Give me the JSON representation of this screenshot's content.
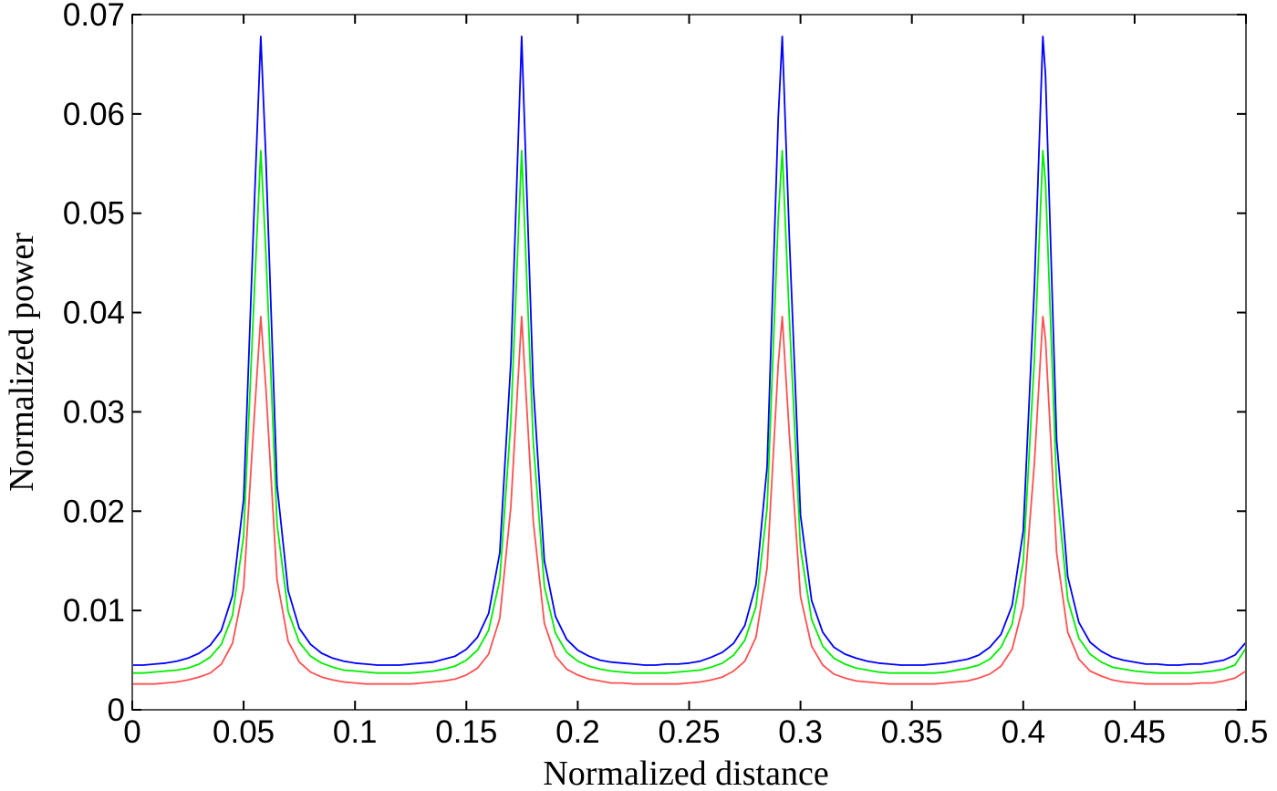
{
  "chart_data": {
    "type": "line",
    "title": "",
    "xlabel": "Normalized distance",
    "ylabel": "Normalized power",
    "xlim": [
      0,
      0.5
    ],
    "ylim": [
      0,
      0.07
    ],
    "grid": false,
    "legend": null,
    "xticks": [
      0,
      0.05,
      0.1,
      0.15,
      0.2,
      0.25,
      0.3,
      0.35,
      0.4,
      0.45,
      0.5
    ],
    "xtick_labels": [
      "0",
      "0.05",
      "0.1",
      "0.15",
      "0.2",
      "0.25",
      "0.3",
      "0.35",
      "0.4",
      "0.45",
      "0.5"
    ],
    "yticks": [
      0,
      0.01,
      0.02,
      0.03,
      0.04,
      0.05,
      0.06,
      0.07
    ],
    "ytick_labels": [
      "0",
      "0.01",
      "0.02",
      "0.03",
      "0.04",
      "0.05",
      "0.06",
      "0.07"
    ],
    "x": [
      0,
      0.005,
      0.01,
      0.015,
      0.02,
      0.025,
      0.03,
      0.035,
      0.04,
      0.045,
      0.05,
      0.055,
      0.0577,
      0.06,
      0.065,
      0.07,
      0.075,
      0.08,
      0.085,
      0.09,
      0.095,
      0.1,
      0.105,
      0.11,
      0.115,
      0.12,
      0.125,
      0.13,
      0.135,
      0.14,
      0.145,
      0.15,
      0.155,
      0.16,
      0.165,
      0.17,
      0.1748,
      0.18,
      0.185,
      0.19,
      0.195,
      0.2,
      0.205,
      0.21,
      0.215,
      0.22,
      0.225,
      0.23,
      0.235,
      0.24,
      0.245,
      0.25,
      0.255,
      0.26,
      0.265,
      0.27,
      0.275,
      0.28,
      0.285,
      0.29,
      0.2918,
      0.295,
      0.3,
      0.305,
      0.31,
      0.315,
      0.32,
      0.325,
      0.33,
      0.335,
      0.34,
      0.345,
      0.35,
      0.355,
      0.36,
      0.365,
      0.37,
      0.375,
      0.38,
      0.385,
      0.39,
      0.395,
      0.4,
      0.405,
      0.4088,
      0.41,
      0.415,
      0.42,
      0.425,
      0.43,
      0.435,
      0.44,
      0.445,
      0.45,
      0.455,
      0.46,
      0.465,
      0.47,
      0.475,
      0.48,
      0.485,
      0.49,
      0.495,
      0.5
    ],
    "series": [
      {
        "name": "blue",
        "color": "#0000ff",
        "values": [
          0.0045,
          0.0045,
          0.0046,
          0.0047,
          0.0049,
          0.0052,
          0.0057,
          0.0065,
          0.008,
          0.0115,
          0.0212,
          0.052,
          0.0678,
          0.0555,
          0.0226,
          0.012,
          0.0082,
          0.0066,
          0.0057,
          0.0052,
          0.0049,
          0.0047,
          0.0046,
          0.0045,
          0.0045,
          0.0045,
          0.0046,
          0.0047,
          0.0048,
          0.0051,
          0.0054,
          0.0061,
          0.0073,
          0.0097,
          0.0158,
          0.0351,
          0.0678,
          0.0326,
          0.015,
          0.0094,
          0.0071,
          0.006,
          0.0054,
          0.005,
          0.0048,
          0.0047,
          0.0046,
          0.0045,
          0.0045,
          0.0046,
          0.0046,
          0.0047,
          0.0049,
          0.0053,
          0.0058,
          0.0067,
          0.0085,
          0.0126,
          0.0245,
          0.0596,
          0.0678,
          0.0475,
          0.0196,
          0.011,
          0.0078,
          0.0063,
          0.0056,
          0.0052,
          0.0049,
          0.0047,
          0.0046,
          0.0045,
          0.0045,
          0.0045,
          0.0046,
          0.0047,
          0.0049,
          0.0051,
          0.0055,
          0.0063,
          0.0076,
          0.0105,
          0.018,
          0.0425,
          0.0678,
          0.0639,
          0.0272,
          0.0134,
          0.0088,
          0.0068,
          0.0059,
          0.0053,
          0.005,
          0.0048,
          0.0046,
          0.0046,
          0.0045,
          0.0045,
          0.0046,
          0.0046,
          0.0048,
          0.005,
          0.0055,
          0.0068
        ]
      },
      {
        "name": "green",
        "color": "#00ee00",
        "values": [
          0.0037,
          0.0037,
          0.0038,
          0.0039,
          0.004,
          0.0042,
          0.0046,
          0.0053,
          0.0066,
          0.0095,
          0.0175,
          0.0431,
          0.0563,
          0.046,
          0.0187,
          0.0099,
          0.0068,
          0.0054,
          0.0047,
          0.0043,
          0.004,
          0.0039,
          0.0038,
          0.0037,
          0.0037,
          0.0037,
          0.0037,
          0.0038,
          0.0039,
          0.0041,
          0.0044,
          0.005,
          0.006,
          0.008,
          0.0131,
          0.0291,
          0.0563,
          0.027,
          0.0124,
          0.0077,
          0.0058,
          0.0049,
          0.0044,
          0.0041,
          0.0039,
          0.0038,
          0.0037,
          0.0037,
          0.0037,
          0.0037,
          0.0038,
          0.0039,
          0.004,
          0.0043,
          0.0047,
          0.0055,
          0.007,
          0.0104,
          0.0203,
          0.0495,
          0.0563,
          0.0394,
          0.0162,
          0.0091,
          0.0064,
          0.0052,
          0.0046,
          0.0042,
          0.004,
          0.0038,
          0.0037,
          0.0037,
          0.0037,
          0.0037,
          0.0037,
          0.0038,
          0.004,
          0.0042,
          0.0045,
          0.0051,
          0.0063,
          0.0086,
          0.0149,
          0.0353,
          0.0563,
          0.0531,
          0.0225,
          0.0111,
          0.0072,
          0.0056,
          0.0048,
          0.0043,
          0.0041,
          0.0039,
          0.0038,
          0.0037,
          0.0037,
          0.0037,
          0.0037,
          0.0038,
          0.0039,
          0.0041,
          0.0045,
          0.0062
        ]
      },
      {
        "name": "red",
        "color": "#ff5050",
        "values": [
          0.0026,
          0.0026,
          0.0026,
          0.0027,
          0.0028,
          0.003,
          0.0033,
          0.0037,
          0.0046,
          0.0067,
          0.0123,
          0.0303,
          0.0396,
          0.0324,
          0.0131,
          0.0069,
          0.0048,
          0.0038,
          0.0033,
          0.003,
          0.0028,
          0.0027,
          0.0026,
          0.0026,
          0.0026,
          0.0026,
          0.0026,
          0.0027,
          0.0028,
          0.0029,
          0.0031,
          0.0035,
          0.0042,
          0.0056,
          0.0092,
          0.0205,
          0.0396,
          0.019,
          0.0087,
          0.0054,
          0.0041,
          0.0035,
          0.0031,
          0.0029,
          0.0027,
          0.0027,
          0.0026,
          0.0026,
          0.0026,
          0.0026,
          0.0026,
          0.0027,
          0.0028,
          0.003,
          0.0033,
          0.0039,
          0.0049,
          0.0073,
          0.0143,
          0.0348,
          0.0396,
          0.0277,
          0.0114,
          0.0064,
          0.0045,
          0.0036,
          0.0032,
          0.0029,
          0.0028,
          0.0027,
          0.0026,
          0.0026,
          0.0026,
          0.0026,
          0.0026,
          0.0027,
          0.0028,
          0.0029,
          0.0032,
          0.0036,
          0.0044,
          0.0061,
          0.0105,
          0.0248,
          0.0396,
          0.0373,
          0.0158,
          0.0078,
          0.0051,
          0.0039,
          0.0034,
          0.003,
          0.0028,
          0.0027,
          0.0026,
          0.0026,
          0.0026,
          0.0026,
          0.0026,
          0.0027,
          0.0027,
          0.0029,
          0.0032,
          0.0039
        ]
      }
    ]
  }
}
